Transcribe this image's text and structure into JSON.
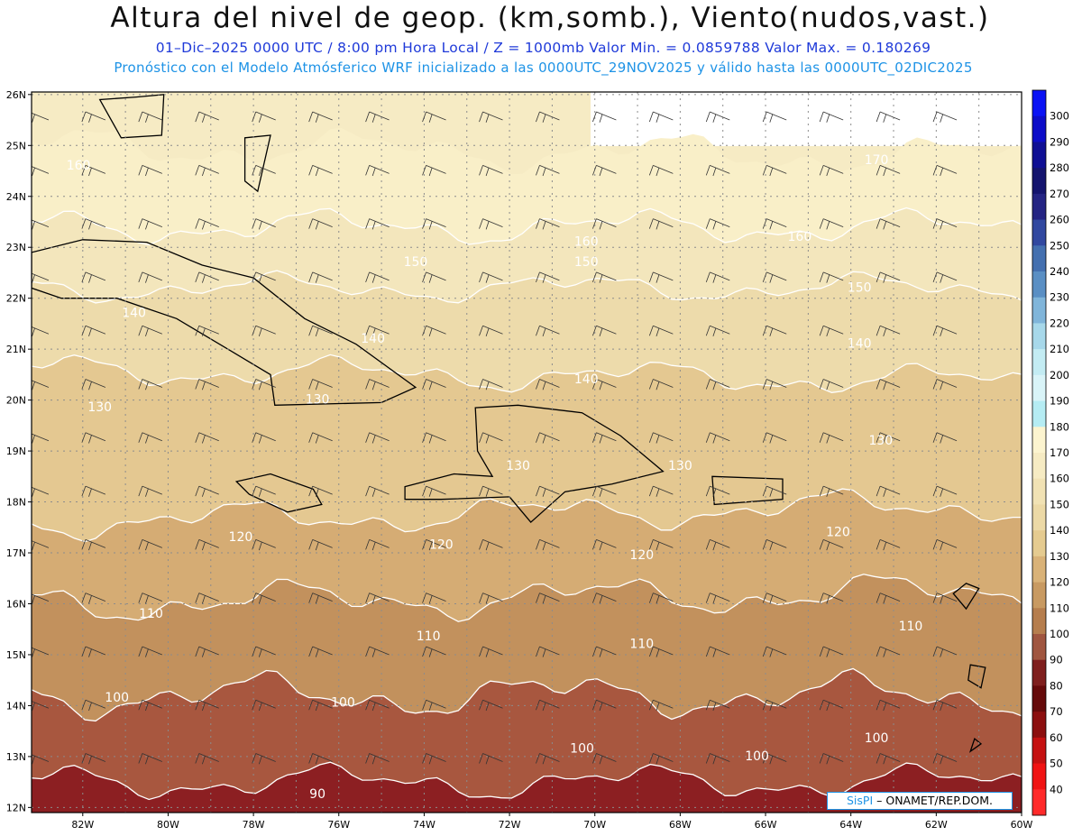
{
  "header": {
    "title": "Altura del nivel de geop. (km,somb.), Viento(nudos,vast.)",
    "info_line": "01–Dic–2025  0000 UTC / 8:00 pm Hora Local / Z = 1000mb  Valor Min. = 0.0859788  Valor Max. = 0.180269",
    "model_line": "Pronóstico con el Modelo Atmósferico WRF inicializado a las 0000UTC_29NOV2025 y válido hasta las  0000UTC_02DIC2025"
  },
  "map": {
    "lat_labels": [
      "26N",
      "25N",
      "24N",
      "23N",
      "22N",
      "21N",
      "20N",
      "19N",
      "18N",
      "17N",
      "16N",
      "15N",
      "14N",
      "13N",
      "12N"
    ],
    "lon_labels": [
      "82W",
      "80W",
      "78W",
      "76W",
      "74W",
      "72W",
      "70W",
      "68W",
      "66W",
      "64W",
      "62W",
      "60W"
    ],
    "contour_labels": [
      {
        "text": "160",
        "lon": -82.1,
        "lat": 24.6
      },
      {
        "text": "170",
        "lon": -63.4,
        "lat": 24.7
      },
      {
        "text": "160",
        "lon": -70.2,
        "lat": 23.1
      },
      {
        "text": "160",
        "lon": -65.2,
        "lat": 23.2
      },
      {
        "text": "150",
        "lon": -74.2,
        "lat": 22.7
      },
      {
        "text": "150",
        "lon": -70.2,
        "lat": 22.7
      },
      {
        "text": "150",
        "lon": -63.8,
        "lat": 22.2
      },
      {
        "text": "140",
        "lon": -80.8,
        "lat": 21.7
      },
      {
        "text": "140",
        "lon": -75.2,
        "lat": 21.2
      },
      {
        "text": "140",
        "lon": -63.8,
        "lat": 21.1
      },
      {
        "text": "140",
        "lon": -70.2,
        "lat": 20.4
      },
      {
        "text": "130",
        "lon": -81.6,
        "lat": 19.85
      },
      {
        "text": "130",
        "lon": -76.5,
        "lat": 20.0
      },
      {
        "text": "130",
        "lon": -63.3,
        "lat": 19.2
      },
      {
        "text": "130",
        "lon": -68.0,
        "lat": 18.7
      },
      {
        "text": "130",
        "lon": -71.8,
        "lat": 18.7
      },
      {
        "text": "120",
        "lon": -78.3,
        "lat": 17.3
      },
      {
        "text": "120",
        "lon": -73.6,
        "lat": 17.15
      },
      {
        "text": "120",
        "lon": -68.9,
        "lat": 16.95
      },
      {
        "text": "120",
        "lon": -64.3,
        "lat": 17.4
      },
      {
        "text": "110",
        "lon": -80.4,
        "lat": 15.8
      },
      {
        "text": "110",
        "lon": -73.9,
        "lat": 15.35
      },
      {
        "text": "110",
        "lon": -68.9,
        "lat": 15.2
      },
      {
        "text": "110",
        "lon": -62.6,
        "lat": 15.55
      },
      {
        "text": "100",
        "lon": -81.2,
        "lat": 14.15
      },
      {
        "text": "100",
        "lon": -75.9,
        "lat": 14.05
      },
      {
        "text": "100",
        "lon": -70.3,
        "lat": 13.15
      },
      {
        "text": "100",
        "lon": -66.2,
        "lat": 13.0
      },
      {
        "text": "100",
        "lon": -63.4,
        "lat": 13.35
      },
      {
        "text": "90",
        "lon": -76.5,
        "lat": 12.25
      }
    ]
  },
  "colorbar": {
    "labels": [
      "300",
      "290",
      "280",
      "270",
      "260",
      "250",
      "240",
      "230",
      "220",
      "210",
      "200",
      "190",
      "180",
      "170",
      "160",
      "150",
      "140",
      "130",
      "120",
      "110",
      "100",
      "90",
      "80",
      "70",
      "60",
      "50",
      "40"
    ],
    "colors": [
      "#0a12f4",
      "#0c0cc8",
      "#0f0f94",
      "#14146e",
      "#242483",
      "#3148a0",
      "#4470b0",
      "#5a8fc4",
      "#80b5da",
      "#a7d8ea",
      "#c3ecf3",
      "#d9f4f8",
      "#b5ecf3",
      "#fcf4cf",
      "#f6ebc3",
      "#f1e2b4",
      "#ecd9a6",
      "#e5cb90",
      "#d9b278",
      "#c89a62",
      "#b67e4e",
      "#a05640",
      "#7f1f1e",
      "#650a0a",
      "#8c0f0f",
      "#c51111",
      "#f01313",
      "#ff2a2a"
    ]
  },
  "credit": {
    "logo": "SisPI",
    "org": " – ONAMET/REP.DOM."
  }
}
